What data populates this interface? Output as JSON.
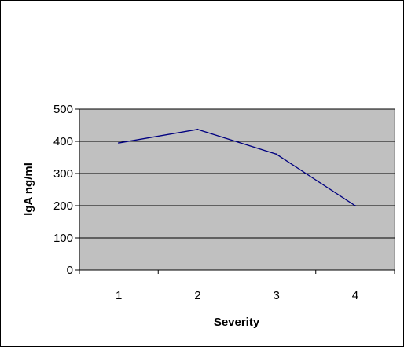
{
  "chart_data": {
    "type": "line",
    "title": "",
    "xlabel": "Severity",
    "ylabel": "IgA ng/ml",
    "categories": [
      "1",
      "2",
      "3",
      "4"
    ],
    "series": [
      {
        "values": [
          395,
          437,
          360,
          200
        ],
        "color": "#000080"
      }
    ],
    "ylim": [
      0,
      500
    ],
    "yticks": [
      0,
      100,
      200,
      300,
      400,
      500
    ],
    "grid": true,
    "plot_background": "#c0c0c0",
    "gridline_color": "#000000",
    "legend": "none"
  }
}
